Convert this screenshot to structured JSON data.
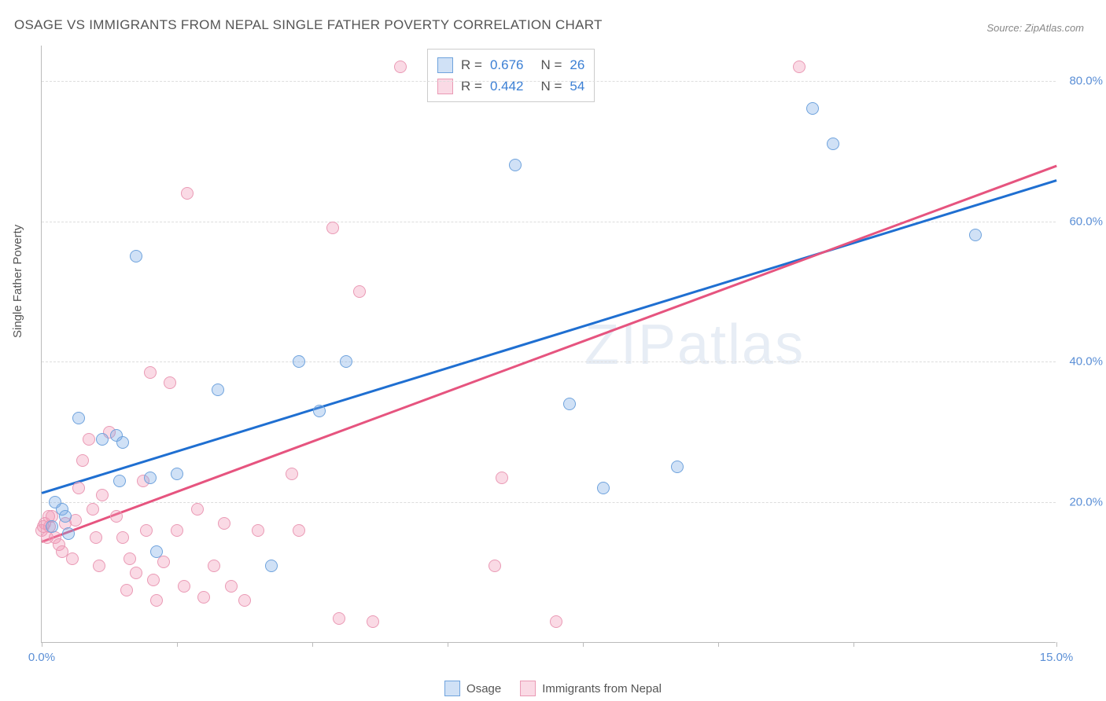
{
  "title": "OSAGE VS IMMIGRANTS FROM NEPAL SINGLE FATHER POVERTY CORRELATION CHART",
  "source_label": "Source: ZipAtlas.com",
  "y_axis_title": "Single Father Poverty",
  "watermark": "ZIPatlas",
  "chart": {
    "type": "scatter",
    "xlim": [
      0,
      15
    ],
    "ylim": [
      0,
      85
    ],
    "x_tick_positions": [
      0,
      2,
      4,
      6,
      8,
      10,
      12,
      15
    ],
    "x_tick_labels_shown": {
      "0": "0.0%",
      "15": "15.0%"
    },
    "y_ticks": [
      20,
      40,
      60,
      80
    ],
    "y_tick_labels": [
      "20.0%",
      "40.0%",
      "60.0%",
      "80.0%"
    ],
    "grid_color": "#dddddd",
    "axis_color": "#bbbbbb",
    "tick_label_color": "#5b8fd6",
    "background_color": "#ffffff",
    "point_radius": 8,
    "series": [
      {
        "name": "Osage",
        "fill": "rgba(120,170,230,0.35)",
        "stroke": "#6fa3dd",
        "trend_color": "#1f6fd1",
        "r_value": "0.676",
        "n_value": "26",
        "trend": {
          "x1": 0,
          "y1": 21.5,
          "x2": 15,
          "y2": 66
        },
        "points": [
          [
            0.15,
            16.5
          ],
          [
            0.2,
            20
          ],
          [
            0.3,
            19
          ],
          [
            0.35,
            18
          ],
          [
            0.4,
            15.5
          ],
          [
            0.55,
            32
          ],
          [
            0.9,
            29
          ],
          [
            1.1,
            29.5
          ],
          [
            1.15,
            23
          ],
          [
            1.2,
            28.5
          ],
          [
            1.4,
            55
          ],
          [
            1.6,
            23.5
          ],
          [
            1.7,
            13
          ],
          [
            2.0,
            24
          ],
          [
            2.6,
            36
          ],
          [
            3.4,
            11
          ],
          [
            3.8,
            40
          ],
          [
            4.1,
            33
          ],
          [
            4.5,
            40
          ],
          [
            7.0,
            68
          ],
          [
            7.8,
            34
          ],
          [
            8.3,
            22
          ],
          [
            9.4,
            25
          ],
          [
            11.4,
            76
          ],
          [
            11.7,
            71
          ],
          [
            13.8,
            58
          ]
        ]
      },
      {
        "name": "Immigrants from Nepal",
        "fill": "rgba(240,150,180,0.35)",
        "stroke": "#ea9ab5",
        "trend_color": "#e6547f",
        "r_value": "0.442",
        "n_value": "54",
        "trend": {
          "x1": 0,
          "y1": 14.5,
          "x2": 15,
          "y2": 68
        },
        "points": [
          [
            0.0,
            16
          ],
          [
            0.02,
            16.5
          ],
          [
            0.05,
            17
          ],
          [
            0.08,
            15
          ],
          [
            0.1,
            18
          ],
          [
            0.12,
            16.5
          ],
          [
            0.15,
            18
          ],
          [
            0.2,
            15
          ],
          [
            0.25,
            14
          ],
          [
            0.3,
            13
          ],
          [
            0.35,
            17
          ],
          [
            0.45,
            12
          ],
          [
            0.5,
            17.5
          ],
          [
            0.55,
            22
          ],
          [
            0.6,
            26
          ],
          [
            0.7,
            29
          ],
          [
            0.75,
            19
          ],
          [
            0.8,
            15
          ],
          [
            0.85,
            11
          ],
          [
            0.9,
            21
          ],
          [
            1.0,
            30
          ],
          [
            1.1,
            18
          ],
          [
            1.2,
            15
          ],
          [
            1.25,
            7.5
          ],
          [
            1.3,
            12
          ],
          [
            1.4,
            10
          ],
          [
            1.5,
            23
          ],
          [
            1.55,
            16
          ],
          [
            1.6,
            38.5
          ],
          [
            1.65,
            9
          ],
          [
            1.7,
            6
          ],
          [
            1.8,
            11.5
          ],
          [
            1.9,
            37
          ],
          [
            2.0,
            16
          ],
          [
            2.1,
            8
          ],
          [
            2.15,
            64
          ],
          [
            2.3,
            19
          ],
          [
            2.4,
            6.5
          ],
          [
            2.55,
            11
          ],
          [
            2.7,
            17
          ],
          [
            2.8,
            8
          ],
          [
            3.0,
            6
          ],
          [
            3.2,
            16
          ],
          [
            3.7,
            24
          ],
          [
            3.8,
            16
          ],
          [
            4.3,
            59
          ],
          [
            4.4,
            3.5
          ],
          [
            4.7,
            50
          ],
          [
            4.9,
            3
          ],
          [
            5.3,
            82
          ],
          [
            6.7,
            11
          ],
          [
            6.8,
            23.5
          ],
          [
            7.6,
            3
          ],
          [
            11.2,
            82
          ]
        ]
      }
    ]
  },
  "stats_legend": {
    "rows": [
      {
        "swatch_fill": "rgba(120,170,230,0.35)",
        "swatch_stroke": "#6fa3dd",
        "r_label": "R  =",
        "r_value": "0.676",
        "n_label": "N  =",
        "n_value": "26"
      },
      {
        "swatch_fill": "rgba(240,150,180,0.35)",
        "swatch_stroke": "#ea9ab5",
        "r_label": "R  =",
        "r_value": "0.442",
        "n_label": "N  =",
        "n_value": "54"
      }
    ],
    "value_color": "#3b7fd4",
    "label_color": "#555555"
  },
  "series_legend": {
    "items": [
      {
        "label": "Osage",
        "fill": "rgba(120,170,230,0.35)",
        "stroke": "#6fa3dd"
      },
      {
        "label": "Immigrants from Nepal",
        "fill": "rgba(240,150,180,0.35)",
        "stroke": "#ea9ab5"
      }
    ]
  }
}
